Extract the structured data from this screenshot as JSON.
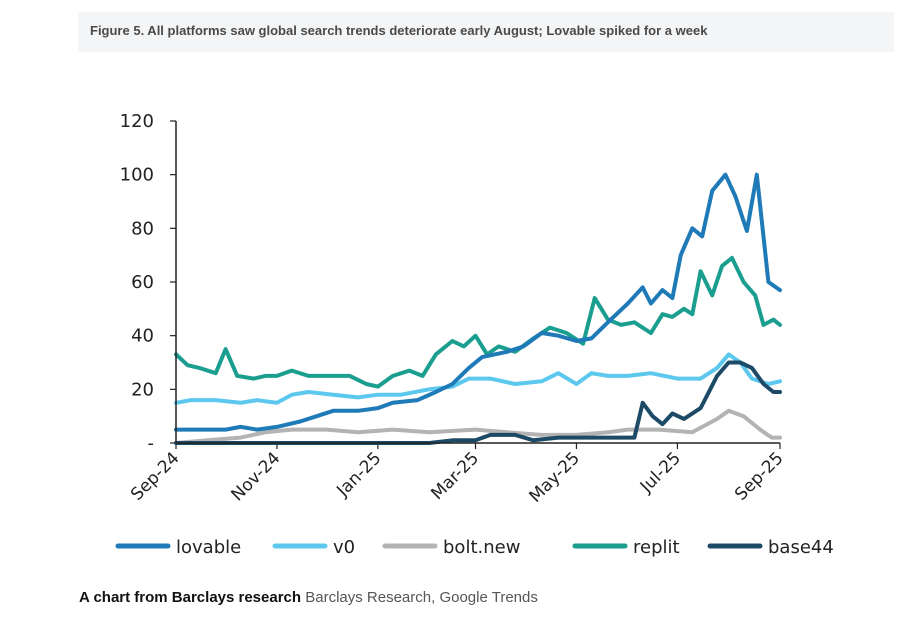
{
  "figure_title": "Figure 5. All platforms saw global search trends deteriorate early August; Lovable spiked for a week",
  "caption": {
    "lead": "A chart from Barclays research",
    "source": "Barclays Research, Google Trends"
  },
  "colors": {
    "lovable": "#1f7ab8",
    "v0": "#5cc8ee",
    "bolt_new": "#b3b3b3",
    "replit": "#1a9e8f",
    "base44": "#1d4a66"
  },
  "chart_data": {
    "type": "line",
    "title": "",
    "xlabel": "",
    "ylabel": "",
    "ylim": [
      0,
      120
    ],
    "yticks": [
      {
        "value": 0,
        "label": "-"
      },
      {
        "value": 20,
        "label": "20"
      },
      {
        "value": 40,
        "label": "40"
      },
      {
        "value": 60,
        "label": "60"
      },
      {
        "value": 80,
        "label": "80"
      },
      {
        "value": 100,
        "label": "100"
      },
      {
        "value": 120,
        "label": "120"
      }
    ],
    "x_start": "2024-09-01",
    "x_end": "2025-09-01",
    "xticks": [
      {
        "date": "2024-09-01",
        "label": "Sep-24"
      },
      {
        "date": "2024-11-01",
        "label": "Nov-24"
      },
      {
        "date": "2025-01-01",
        "label": "Jan-25"
      },
      {
        "date": "2025-03-01",
        "label": "Mar-25"
      },
      {
        "date": "2025-05-01",
        "label": "May-25"
      },
      {
        "date": "2025-07-01",
        "label": "Jul-25"
      },
      {
        "date": "2025-09-01",
        "label": "Sep-25"
      }
    ],
    "legend_position": "bottom",
    "grid": false,
    "series": [
      {
        "name": "lovable",
        "color": "#1f7ab8",
        "points": [
          [
            "2024-09-01",
            5
          ],
          [
            "2024-09-15",
            5
          ],
          [
            "2024-10-01",
            5
          ],
          [
            "2024-10-10",
            6
          ],
          [
            "2024-10-20",
            5
          ],
          [
            "2024-11-01",
            6
          ],
          [
            "2024-11-15",
            8
          ],
          [
            "2024-11-25",
            10
          ],
          [
            "2024-12-05",
            12
          ],
          [
            "2024-12-20",
            12
          ],
          [
            "2025-01-01",
            13
          ],
          [
            "2025-01-10",
            15
          ],
          [
            "2025-01-25",
            16
          ],
          [
            "2025-02-05",
            19
          ],
          [
            "2025-02-15",
            22
          ],
          [
            "2025-02-25",
            28
          ],
          [
            "2025-03-05",
            32
          ],
          [
            "2025-03-20",
            34
          ],
          [
            "2025-03-30",
            36
          ],
          [
            "2025-04-10",
            41
          ],
          [
            "2025-04-20",
            40
          ],
          [
            "2025-05-01",
            38
          ],
          [
            "2025-05-10",
            39
          ],
          [
            "2025-05-20",
            45
          ],
          [
            "2025-06-01",
            52
          ],
          [
            "2025-06-10",
            58
          ],
          [
            "2025-06-15",
            52
          ],
          [
            "2025-06-22",
            57
          ],
          [
            "2025-06-28",
            54
          ],
          [
            "2025-07-03",
            70
          ],
          [
            "2025-07-10",
            80
          ],
          [
            "2025-07-16",
            77
          ],
          [
            "2025-07-22",
            94
          ],
          [
            "2025-07-30",
            100
          ],
          [
            "2025-08-05",
            92
          ],
          [
            "2025-08-12",
            79
          ],
          [
            "2025-08-18",
            100
          ],
          [
            "2025-08-25",
            60
          ],
          [
            "2025-09-01",
            57
          ]
        ]
      },
      {
        "name": "v0",
        "color": "#5cc8ee",
        "points": [
          [
            "2024-09-01",
            15
          ],
          [
            "2024-09-10",
            16
          ],
          [
            "2024-09-25",
            16
          ],
          [
            "2024-10-10",
            15
          ],
          [
            "2024-10-20",
            16
          ],
          [
            "2024-11-01",
            15
          ],
          [
            "2024-11-10",
            18
          ],
          [
            "2024-11-20",
            19
          ],
          [
            "2024-12-05",
            18
          ],
          [
            "2024-12-20",
            17
          ],
          [
            "2025-01-01",
            18
          ],
          [
            "2025-01-15",
            18
          ],
          [
            "2025-02-01",
            20
          ],
          [
            "2025-02-15",
            21
          ],
          [
            "2025-02-25",
            24
          ],
          [
            "2025-03-10",
            24
          ],
          [
            "2025-03-25",
            22
          ],
          [
            "2025-04-10",
            23
          ],
          [
            "2025-04-20",
            26
          ],
          [
            "2025-05-01",
            22
          ],
          [
            "2025-05-10",
            26
          ],
          [
            "2025-05-20",
            25
          ],
          [
            "2025-06-01",
            25
          ],
          [
            "2025-06-15",
            26
          ],
          [
            "2025-07-01",
            24
          ],
          [
            "2025-07-15",
            24
          ],
          [
            "2025-07-25",
            28
          ],
          [
            "2025-08-01",
            33
          ],
          [
            "2025-08-08",
            30
          ],
          [
            "2025-08-15",
            24
          ],
          [
            "2025-08-25",
            22
          ],
          [
            "2025-09-01",
            23
          ]
        ]
      },
      {
        "name": "bolt.new",
        "color": "#b3b3b3",
        "points": [
          [
            "2024-09-01",
            0
          ],
          [
            "2024-09-20",
            1
          ],
          [
            "2024-10-10",
            2
          ],
          [
            "2024-10-25",
            4
          ],
          [
            "2024-11-10",
            5
          ],
          [
            "2024-12-01",
            5
          ],
          [
            "2024-12-20",
            4
          ],
          [
            "2025-01-10",
            5
          ],
          [
            "2025-02-01",
            4
          ],
          [
            "2025-03-01",
            5
          ],
          [
            "2025-03-20",
            4
          ],
          [
            "2025-04-10",
            3
          ],
          [
            "2025-05-01",
            3
          ],
          [
            "2025-05-20",
            4
          ],
          [
            "2025-06-01",
            5
          ],
          [
            "2025-06-20",
            5
          ],
          [
            "2025-07-10",
            4
          ],
          [
            "2025-07-25",
            9
          ],
          [
            "2025-08-01",
            12
          ],
          [
            "2025-08-10",
            10
          ],
          [
            "2025-08-20",
            5
          ],
          [
            "2025-08-27",
            2
          ],
          [
            "2025-09-01",
            2
          ]
        ]
      },
      {
        "name": "replit",
        "color": "#1a9e8f",
        "points": [
          [
            "2024-09-01",
            33
          ],
          [
            "2024-09-08",
            29
          ],
          [
            "2024-09-15",
            28
          ],
          [
            "2024-09-25",
            26
          ],
          [
            "2024-10-01",
            35
          ],
          [
            "2024-10-08",
            25
          ],
          [
            "2024-10-18",
            24
          ],
          [
            "2024-10-25",
            25
          ],
          [
            "2024-11-01",
            25
          ],
          [
            "2024-11-10",
            27
          ],
          [
            "2024-11-20",
            25
          ],
          [
            "2024-12-05",
            25
          ],
          [
            "2024-12-15",
            25
          ],
          [
            "2024-12-25",
            22
          ],
          [
            "2025-01-01",
            21
          ],
          [
            "2025-01-10",
            25
          ],
          [
            "2025-01-20",
            27
          ],
          [
            "2025-01-28",
            25
          ],
          [
            "2025-02-05",
            33
          ],
          [
            "2025-02-15",
            38
          ],
          [
            "2025-02-22",
            36
          ],
          [
            "2025-03-01",
            40
          ],
          [
            "2025-03-08",
            33
          ],
          [
            "2025-03-15",
            36
          ],
          [
            "2025-03-25",
            34
          ],
          [
            "2025-04-05",
            39
          ],
          [
            "2025-04-15",
            43
          ],
          [
            "2025-04-25",
            41
          ],
          [
            "2025-05-05",
            37
          ],
          [
            "2025-05-12",
            54
          ],
          [
            "2025-05-20",
            46
          ],
          [
            "2025-05-28",
            44
          ],
          [
            "2025-06-05",
            45
          ],
          [
            "2025-06-15",
            41
          ],
          [
            "2025-06-22",
            48
          ],
          [
            "2025-06-28",
            47
          ],
          [
            "2025-07-05",
            50
          ],
          [
            "2025-07-10",
            48
          ],
          [
            "2025-07-15",
            64
          ],
          [
            "2025-07-22",
            55
          ],
          [
            "2025-07-28",
            66
          ],
          [
            "2025-08-03",
            69
          ],
          [
            "2025-08-10",
            60
          ],
          [
            "2025-08-17",
            55
          ],
          [
            "2025-08-22",
            44
          ],
          [
            "2025-08-28",
            46
          ],
          [
            "2025-09-01",
            44
          ]
        ]
      },
      {
        "name": "base44",
        "color": "#1d4a66",
        "points": [
          [
            "2024-09-01",
            0
          ],
          [
            "2024-10-01",
            0
          ],
          [
            "2024-11-01",
            0
          ],
          [
            "2024-12-01",
            0
          ],
          [
            "2025-01-01",
            0
          ],
          [
            "2025-02-01",
            0
          ],
          [
            "2025-02-15",
            1
          ],
          [
            "2025-03-01",
            1
          ],
          [
            "2025-03-10",
            3
          ],
          [
            "2025-03-25",
            3
          ],
          [
            "2025-04-05",
            1
          ],
          [
            "2025-04-20",
            2
          ],
          [
            "2025-05-05",
            2
          ],
          [
            "2025-05-20",
            2
          ],
          [
            "2025-06-05",
            2
          ],
          [
            "2025-06-10",
            15
          ],
          [
            "2025-06-16",
            10
          ],
          [
            "2025-06-22",
            7
          ],
          [
            "2025-06-28",
            11
          ],
          [
            "2025-07-05",
            9
          ],
          [
            "2025-07-15",
            13
          ],
          [
            "2025-07-25",
            25
          ],
          [
            "2025-08-01",
            30
          ],
          [
            "2025-08-08",
            30
          ],
          [
            "2025-08-15",
            28
          ],
          [
            "2025-08-22",
            22
          ],
          [
            "2025-08-28",
            19
          ],
          [
            "2025-09-01",
            19
          ]
        ]
      }
    ]
  }
}
